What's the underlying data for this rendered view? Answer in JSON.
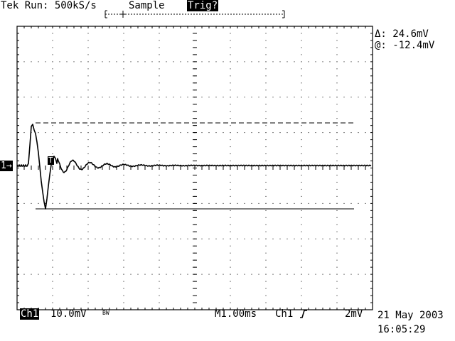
{
  "header": {
    "status": "Tek Run: 500kS/s",
    "acquisition_mode": "Sample",
    "trigger_status": "Trig?"
  },
  "cursor_readout": {
    "delta": "Δ: 24.6mV",
    "at": "@: -12.4mV"
  },
  "channel_marker": {
    "label": "1→"
  },
  "trigger_marker": {
    "label": "T"
  },
  "footer": {
    "channel": "Ch1",
    "volts_per_div": "10.0mV",
    "bandwidth_limit": "BW",
    "timebase": "M1.00ms",
    "trigger_source": "Ch1",
    "trigger_slope_icon": "rising-edge-icon",
    "trigger_level": "2mV",
    "date": "21 May 2003",
    "time": "16:05:29"
  },
  "colors": {
    "background": "#ffffff",
    "trace": "#000000"
  }
}
